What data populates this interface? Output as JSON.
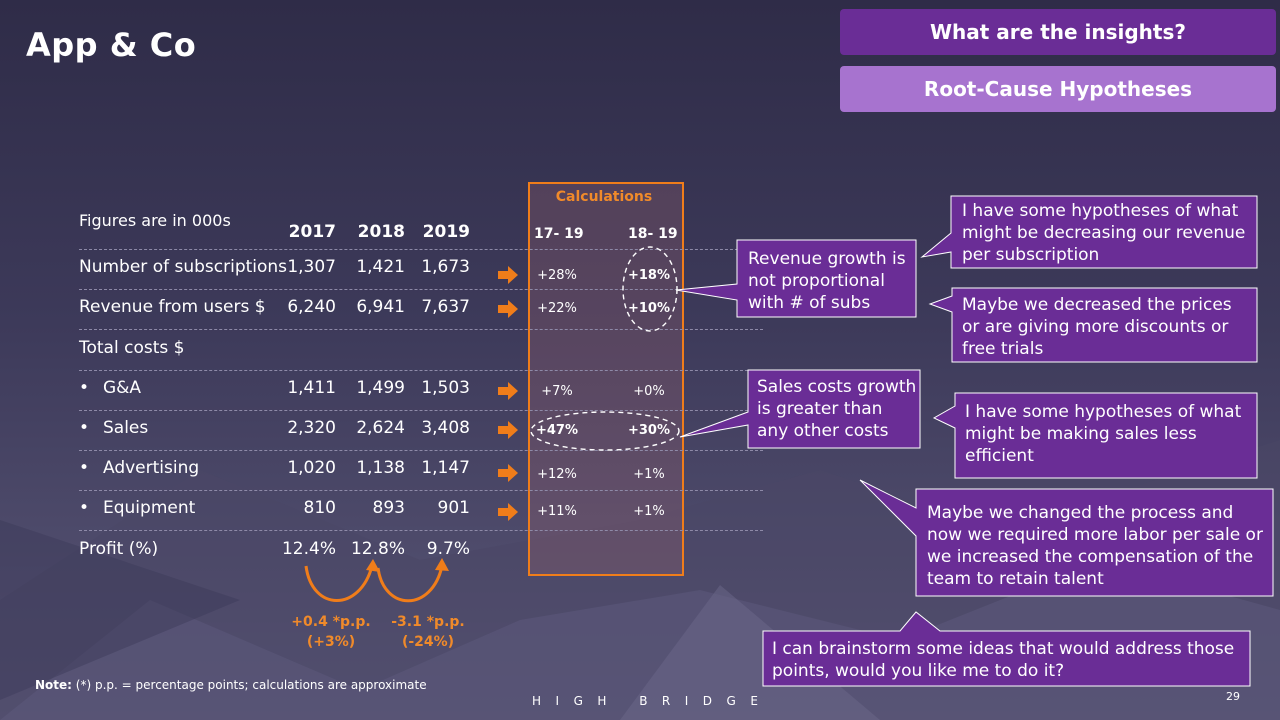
{
  "title": "App & Co",
  "buttons": {
    "insights": "What are the insights?",
    "hypotheses": "Root-Cause Hypotheses"
  },
  "table": {
    "note": "Figures are in 000s",
    "years": [
      "2017",
      "2018",
      "2019"
    ],
    "rows": [
      {
        "label": "Number of subscriptions",
        "bullet": false,
        "values": [
          "1,307",
          "1,421",
          "1,673"
        ]
      },
      {
        "label": "Revenue from users $",
        "bullet": false,
        "values": [
          "6,240",
          "6,941",
          "7,637"
        ]
      },
      {
        "label": "Total costs $",
        "bullet": false,
        "values": [
          "",
          "",
          ""
        ]
      },
      {
        "label": "G&A",
        "bullet": true,
        "values": [
          "1,411",
          "1,499",
          "1,503"
        ]
      },
      {
        "label": "Sales",
        "bullet": true,
        "values": [
          "2,320",
          "2,624",
          "3,408"
        ]
      },
      {
        "label": "Advertising",
        "bullet": true,
        "values": [
          "1,020",
          "1,138",
          "1,147"
        ]
      },
      {
        "label": "Equipment",
        "bullet": true,
        "values": [
          "810",
          "893",
          "901"
        ]
      },
      {
        "label": "Profit (%)",
        "bullet": false,
        "values": [
          "12.4%",
          "12.8%",
          "9.7%"
        ]
      }
    ]
  },
  "calculations": {
    "title": "Calculations",
    "headers": [
      "17- 19",
      "18- 19"
    ],
    "rows": [
      [
        "+28%",
        "+18%"
      ],
      [
        "+22%",
        "+10%"
      ],
      [
        "+7%",
        "+0%"
      ],
      [
        "+47%",
        "+30%"
      ],
      [
        "+12%",
        "+1%"
      ],
      [
        "+11%",
        "+1%"
      ]
    ]
  },
  "profit_deltas": [
    {
      "line1": "+0.4 *p.p.",
      "line2": "(+3%)"
    },
    {
      "line1": "-3.1 *p.p.",
      "line2": "(-24%)"
    }
  ],
  "callouts": {
    "revenue_growth": "Revenue growth is not proportional with # of subs",
    "sales_growth": "Sales costs growth is greater than any other costs",
    "hyp_revenue": "I have some hypotheses of what might be decreasing our revenue per subscription",
    "hyp_prices": "Maybe we decreased the prices or are giving more discounts or free trials",
    "hyp_sales": "I have some hypotheses of what might be making sales less efficient",
    "hyp_process": "Maybe we changed the process and now we required more labor per sale or we increased the compensation of the team to retain talent",
    "brainstorm": "I can brainstorm some ideas that would address those points, would you like me to do it?"
  },
  "footer": {
    "note_label": "Note:",
    "note_text": "(*) p.p. = percentage points; calculations are approximate",
    "brand": "HIGH BRIDGE",
    "page": "29"
  },
  "colors": {
    "accent_orange": "#f07d1a",
    "callout_purple": "#6a2d96",
    "button_light_purple": "#a773cf"
  }
}
